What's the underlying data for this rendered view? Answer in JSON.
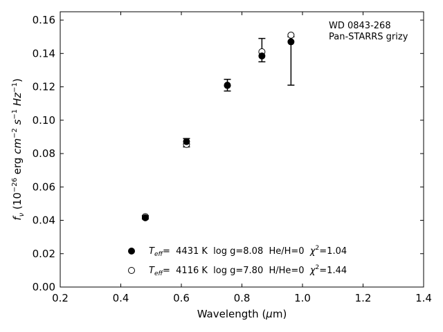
{
  "chart_data": {
    "type": "scatter",
    "xlabel": "Wavelength (μm)",
    "ylabel": "fν (10⁻²⁶ erg cm⁻² s⁻¹ Hz⁻¹)",
    "xlim": [
      0.2,
      1.4
    ],
    "ylim": [
      0.0,
      0.165
    ],
    "xticks": [
      0.2,
      0.4,
      0.6,
      0.8,
      1.0,
      1.2,
      1.4
    ],
    "xtick_labels": [
      "0.2",
      "0.4",
      "0.6",
      "0.8",
      "1.0",
      "1.2",
      "1.4"
    ],
    "yticks": [
      0.0,
      0.02,
      0.04,
      0.06,
      0.08,
      0.1,
      0.12,
      0.14,
      0.16
    ],
    "ytick_labels": [
      "0.00",
      "0.02",
      "0.04",
      "0.06",
      "0.08",
      "0.10",
      "0.12",
      "0.14",
      "0.16"
    ],
    "grid": false,
    "annotations": [
      "WD 0843-268",
      "Pan-STARRS grizy"
    ],
    "observed": {
      "x": [
        0.481,
        0.617,
        0.752,
        0.866,
        0.962
      ],
      "y": [
        0.0418,
        0.0865,
        0.121,
        0.142,
        0.15
      ],
      "err_low": [
        0.001,
        0.0025,
        0.0035,
        0.007,
        0.029
      ],
      "err_high": [
        0.001,
        0.0025,
        0.0035,
        0.007,
        0.0
      ]
    },
    "series": [
      {
        "marker": "filled",
        "label": "Teff= 4431 K log g=8.08 He/H=0 χ²=1.04",
        "x": [
          0.481,
          0.617,
          0.752,
          0.866,
          0.962
        ],
        "y": [
          0.0415,
          0.0872,
          0.1208,
          0.1385,
          0.147
        ]
      },
      {
        "marker": "open",
        "label": "Teff= 4116 K log g=7.80 H/He=0 χ²=1.44",
        "x": [
          0.481,
          0.617,
          0.752,
          0.866,
          0.962
        ],
        "y": [
          0.0422,
          0.0855,
          0.121,
          0.141,
          0.151
        ]
      }
    ],
    "legend_position": "lower-center",
    "legend": [
      {
        "marker": "filled",
        "teff_label": "T",
        "teff_sub": "eff",
        "teff": "=  4431 K",
        "logg": "log g=8.08",
        "comp": "He/H=0",
        "chi_label": "χ",
        "chi_sup": "2",
        "chi": "=1.04"
      },
      {
        "marker": "open",
        "teff_label": "T",
        "teff_sub": "eff",
        "teff": "=  4116 K",
        "logg": "log g=7.80",
        "comp": "H/He=0",
        "chi_label": "χ",
        "chi_sup": "2",
        "chi": "=1.44"
      }
    ]
  }
}
